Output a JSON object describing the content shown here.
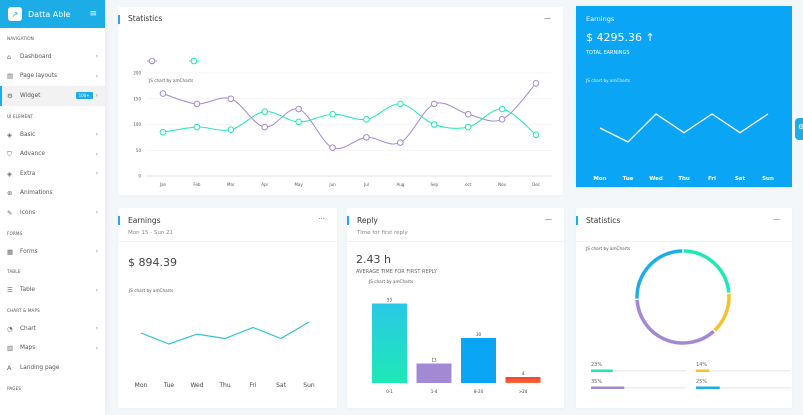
{
  "sidebar": {
    "brand": "Datta Able",
    "sections": {
      "navigation": "NAVIGATION",
      "ui": "UI ELEMENT",
      "forms": "FORMS",
      "table": "TABLE",
      "charts": "CHART & MAPS",
      "pages": "PAGES"
    },
    "items": {
      "dashboard": "Dashboard",
      "layouts": "Page layouts",
      "widget": "Widget",
      "widget_badge": "100+",
      "basic": "Basic",
      "advance": "Advance",
      "extra": "Extra",
      "animations": "Animations",
      "icons": "Icons",
      "forms": "Forms",
      "table": "Table",
      "chart": "Chart",
      "maps": "Maps",
      "landing": "Landing page"
    }
  },
  "watermark": "JS chart by amCharts",
  "statistics_line": {
    "title": "Statistics",
    "colors": {
      "series1": "#a389d4",
      "series2": "#1de9b6"
    },
    "chart_data": {
      "type": "line",
      "categories": [
        "Jan",
        "Feb",
        "Mar",
        "Apr",
        "May",
        "Jun",
        "Jul",
        "Aug",
        "Sep",
        "oct",
        "Nov",
        "Dec"
      ],
      "yticks": [
        "0",
        "50",
        "100",
        "150",
        "200"
      ],
      "ylim": [
        0,
        200
      ],
      "grid": true,
      "legend": "top-left",
      "series": [
        {
          "values": [
            160,
            140,
            150,
            95,
            130,
            55,
            75,
            65,
            140,
            120,
            110,
            180
          ]
        },
        {
          "values": [
            85,
            95,
            90,
            125,
            105,
            120,
            110,
            140,
            100,
            95,
            130,
            80
          ]
        }
      ]
    }
  },
  "earnings_total": {
    "title": "Earnings",
    "amount": "$ 4295.36",
    "arrow": "↑",
    "label": "TOTAL EARNINGS",
    "chart_data": {
      "type": "line",
      "categories": [
        "Mon",
        "Tue",
        "Wed",
        "Thu",
        "Fri",
        "Sat",
        "Sun"
      ],
      "values": [
        60,
        45,
        75,
        55,
        75,
        55,
        75
      ]
    }
  },
  "earnings_week": {
    "title": "Earnings",
    "subtitle": "Mon 15 - Sun 21",
    "amount": "$ 894.39",
    "chart_data": {
      "type": "line",
      "categories": [
        "Mon",
        "Tue",
        "Wed",
        "Thu",
        "Fri",
        "Sat",
        "Sun"
      ],
      "values": [
        55,
        45,
        54,
        50,
        60,
        50,
        65
      ]
    }
  },
  "reply": {
    "title": "Reply",
    "subtitle": "Time for first reply",
    "value": "2.43 h",
    "label": "AVERAGE TIME FOR FIRST REPLY",
    "chart_data": {
      "type": "bar",
      "categories": [
        "0-1",
        "1-4",
        "8-24",
        ">24"
      ],
      "values": [
        53,
        13,
        30,
        4
      ],
      "colors": [
        "#1de9b6",
        "#a389d4",
        "#0ba5f5",
        "#f44236"
      ]
    }
  },
  "statistics_donut": {
    "title": "Statistics",
    "chart_data": {
      "type": "pie",
      "values": [
        23,
        14,
        35,
        25
      ],
      "labels": [
        "23%",
        "14%",
        "35%",
        "25%"
      ],
      "colors": [
        "#1de9b6",
        "#f4c22b",
        "#a389d4",
        "#1dade6"
      ]
    }
  }
}
